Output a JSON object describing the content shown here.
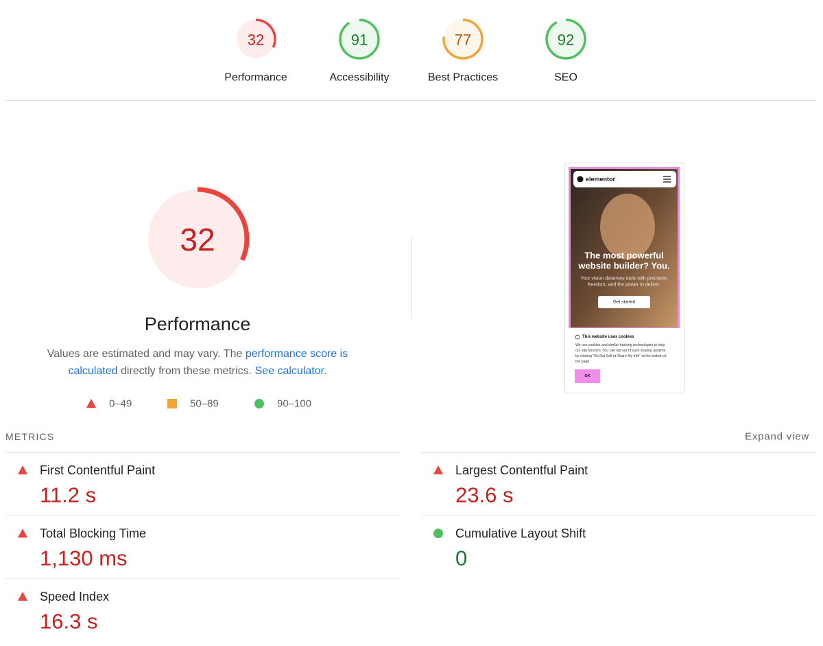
{
  "gauge_range": [
    0,
    100
  ],
  "scores": [
    {
      "label": "Performance",
      "value": 32,
      "color": "#e8453c",
      "text_color": "#c5221f"
    },
    {
      "label": "Accessibility",
      "value": 91,
      "color": "#4fc05f",
      "text_color": "#1e7a32"
    },
    {
      "label": "Best Practices",
      "value": 77,
      "color": "#f0a43a",
      "text_color": "#b15c0a"
    },
    {
      "label": "SEO",
      "value": 92,
      "color": "#4fc05f",
      "text_color": "#1e7a32"
    }
  ],
  "performance": {
    "value": 32,
    "color": "#e8453c",
    "text_color": "#c5221f",
    "title": "Performance",
    "description": [
      [
        {
          "text": "Values are estimated and may vary. The ",
          "link": false
        },
        {
          "text": "performance score is",
          "link": true
        }
      ],
      [
        {
          "text": "calculated",
          "link": true
        },
        {
          "text": " directly from these metrics. ",
          "link": false
        },
        {
          "text": "See calculator",
          "link": true
        },
        {
          "text": ".",
          "link": false
        }
      ]
    ],
    "legend": [
      {
        "label": "0–49",
        "shape": "triangle",
        "color": "#e8453c"
      },
      {
        "label": "50–89",
        "shape": "square",
        "color": "#f0a43a"
      },
      {
        "label": "90–100",
        "shape": "circle",
        "color": "#4fc05f"
      }
    ]
  },
  "screenshot": {
    "brand": "elementor",
    "headline": [
      "The most powerful",
      "website builder? You."
    ],
    "subtitle": [
      "Your vision deserves tools with precision,",
      "freedom, and the power to deliver."
    ],
    "button": "Get started",
    "cookie_title": "This website uses cookies",
    "cookie_text": [
      "We use cookies and similar tracking technologies to help",
      "our site function. You can opt out of such sharing anytime",
      "by clicking \"Do Not Sell or Share My Info\" at the bottom of",
      "the page"
    ],
    "cookie_button": "OK"
  },
  "metrics": {
    "heading": "METRICS",
    "expand": "Expand view",
    "items": [
      {
        "name": "First Contentful Paint",
        "value": "11.2 s",
        "rating": "fail"
      },
      {
        "name": "Largest Contentful Paint",
        "value": "23.6 s",
        "rating": "fail"
      },
      {
        "name": "Total Blocking Time",
        "value": "1,130 ms",
        "rating": "fail"
      },
      {
        "name": "Cumulative Layout Shift",
        "value": "0",
        "rating": "pass"
      },
      {
        "name": "Speed Index",
        "value": "16.3 s",
        "rating": "fail"
      }
    ]
  }
}
